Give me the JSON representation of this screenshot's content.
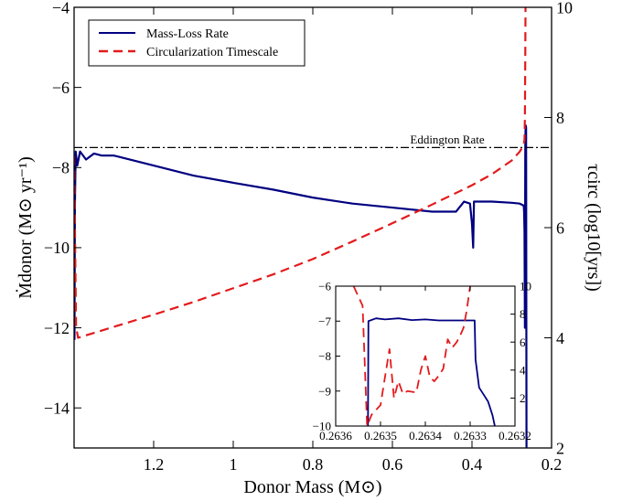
{
  "chart_data": [
    {
      "type": "line",
      "xlabel": "Donor Mass (M⊙)",
      "ylabel_left": "Ṁdonor (M⊙ yr⁻¹)",
      "ylabel_right": "τcirc (log10[yrs])",
      "xlim": [
        1.4,
        0.2
      ],
      "ylim_left": [
        -15,
        -4
      ],
      "ylim_right": [
        2,
        10
      ],
      "x_ticks": [
        1.2,
        1.0,
        0.8,
        0.6,
        0.4,
        0.2
      ],
      "x_tick_labels": [
        "1.2",
        "1",
        "0.8",
        "0.6",
        "0.4",
        "0.2"
      ],
      "y_left_ticks": [
        -4,
        -6,
        -8,
        -10,
        -12,
        -14
      ],
      "y_left_tick_labels": [
        "−4",
        "−6",
        "−8",
        "−10",
        "−12",
        "−14"
      ],
      "y_right_ticks": [
        2,
        4,
        6,
        8,
        10
      ],
      "y_right_tick_labels": [
        "2",
        "4",
        "6",
        "8",
        "10"
      ],
      "grid": false,
      "legend_placement": "top-left",
      "annotation": {
        "text": "Eddington Rate",
        "y": -7.5
      },
      "series": [
        {
          "name": "Mass-Loss Rate",
          "axis": "left",
          "color": "#000080",
          "style": "solid",
          "x": [
            1.399,
            1.398,
            1.396,
            1.392,
            1.385,
            1.37,
            1.35,
            1.33,
            1.3,
            1.2,
            1.1,
            1.0,
            0.9,
            0.8,
            0.7,
            0.6,
            0.5,
            0.44,
            0.42,
            0.405,
            0.4,
            0.397,
            0.395,
            0.39,
            0.37,
            0.35,
            0.3,
            0.28,
            0.27,
            0.269,
            0.268,
            0.267,
            0.266,
            0.265,
            0.264,
            0.263
          ],
          "y": [
            -12.3,
            -9.0,
            -7.6,
            -7.95,
            -7.6,
            -7.8,
            -7.65,
            -7.7,
            -7.7,
            -7.95,
            -8.2,
            -8.38,
            -8.55,
            -8.75,
            -8.9,
            -9.0,
            -9.1,
            -9.1,
            -8.85,
            -8.9,
            -9.4,
            -10.0,
            -8.85,
            -8.85,
            -8.85,
            -8.85,
            -8.88,
            -8.9,
            -8.95,
            -9.1,
            -9.6,
            -12.0,
            -7.3,
            -6.95,
            -7.0,
            -15.0
          ]
        },
        {
          "name": "Circularization Timescale",
          "axis": "right",
          "color": "#e31a1c",
          "style": "dashed",
          "x": [
            1.4,
            1.395,
            1.39,
            1.3,
            1.2,
            1.1,
            1.0,
            0.9,
            0.8,
            0.7,
            0.6,
            0.5,
            0.4,
            0.35,
            0.3,
            0.28,
            0.27,
            0.268,
            0.267,
            0.266,
            0.2655
          ],
          "y": [
            7.3,
            4.2,
            4.0,
            4.2,
            4.42,
            4.65,
            4.9,
            5.15,
            5.43,
            5.75,
            6.08,
            6.42,
            6.77,
            6.97,
            7.22,
            7.38,
            7.5,
            7.6,
            8.0,
            9.2,
            10.0
          ]
        },
        {
          "name": "Eddington Rate",
          "axis": "left",
          "color": "#000000",
          "style": "dashdot",
          "x": [
            1.4,
            0.2
          ],
          "y": [
            -7.5,
            -7.5
          ]
        }
      ]
    },
    {
      "type": "line",
      "inset": true,
      "xlim": [
        0.2636,
        0.2632
      ],
      "ylim_left": [
        -10,
        -6
      ],
      "ylim_right": [
        0,
        10
      ],
      "x_ticks": [
        0.2636,
        0.2635,
        0.2634,
        0.2633,
        0.2632
      ],
      "x_tick_labels": [
        "0.2636",
        "0.2635",
        "0.2634",
        "0.2633",
        "0.2632"
      ],
      "y_left_ticks": [
        -6,
        -7,
        -8,
        -9,
        -10
      ],
      "y_left_tick_labels": [
        "−6",
        "−7",
        "−8",
        "−9",
        "−10"
      ],
      "y_right_ticks": [
        2,
        4,
        6,
        8,
        10
      ],
      "y_right_tick_labels": [
        "2",
        "4",
        "6",
        "8",
        "10"
      ],
      "series": [
        {
          "name": "Mass-Loss Rate",
          "axis": "left",
          "color": "#000080",
          "style": "solid",
          "x": [
            0.263528,
            0.263527,
            0.26351,
            0.26349,
            0.26346,
            0.26343,
            0.2634,
            0.26337,
            0.26334,
            0.26331,
            0.26329,
            0.263288,
            0.26328,
            0.26327,
            0.26326,
            0.26325,
            0.263245
          ],
          "y": [
            -10.0,
            -7.0,
            -6.92,
            -6.95,
            -6.92,
            -6.97,
            -6.95,
            -6.98,
            -6.98,
            -6.98,
            -6.98,
            -8.1,
            -8.9,
            -9.1,
            -9.3,
            -9.7,
            -10.0
          ]
        },
        {
          "name": "Circularization Timescale",
          "axis": "right",
          "color": "#e31a1c",
          "style": "dashed",
          "x": [
            0.26356,
            0.26354,
            0.26353,
            0.26352,
            0.2635,
            0.26348,
            0.26347,
            0.26346,
            0.26345,
            0.26344,
            0.26342,
            0.26341,
            0.2634,
            0.26339,
            0.26338,
            0.26337,
            0.26336,
            0.26335,
            0.26334,
            0.26333,
            0.263322,
            0.263315,
            0.263308,
            0.2633
          ],
          "y": [
            10.0,
            8.6,
            0.0,
            0.8,
            1.5,
            5.5,
            2.0,
            3.2,
            2.3,
            2.5,
            2.4,
            4.0,
            5.0,
            3.5,
            3.2,
            3.6,
            4.1,
            6.2,
            5.6,
            6.0,
            6.5,
            7.0,
            8.2,
            10.0
          ]
        }
      ]
    }
  ]
}
